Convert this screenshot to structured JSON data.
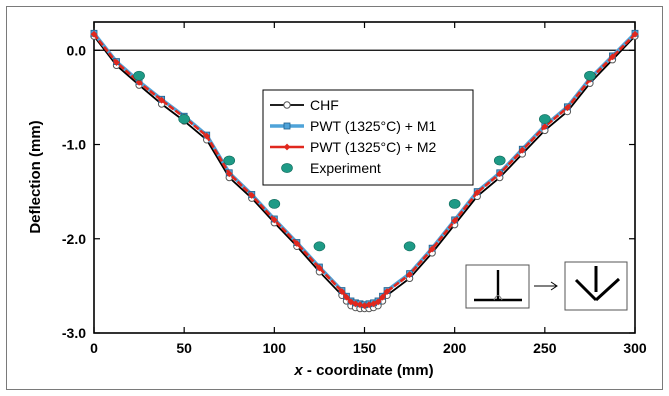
{
  "chart_data": {
    "type": "line",
    "title": "",
    "xlabel": "x - coordinate (mm)",
    "xlabel_italic_part": "x",
    "xlabel_rest": " - coordinate (mm)",
    "ylabel": "Deflection (mm)",
    "xlim": [
      0,
      300
    ],
    "ylim": [
      -3.0,
      0.3
    ],
    "xticks": [
      0,
      50,
      100,
      150,
      200,
      250,
      300
    ],
    "yticks": [
      0.0,
      -1.0,
      -2.0,
      -3.0
    ],
    "xtick_labels": [
      "0",
      "50",
      "100",
      "150",
      "200",
      "250",
      "300"
    ],
    "ytick_labels": [
      "0.0",
      "-1.0",
      "-2.0",
      "-3.0"
    ],
    "grid": false,
    "reference_line_y": 0.0,
    "legend_position": "top-center",
    "series": [
      {
        "name": "CHF",
        "color": "#000000",
        "marker": "open-circle",
        "x": [
          0,
          12.5,
          25,
          37.5,
          50,
          62.5,
          75,
          87.5,
          100,
          112.5,
          125,
          137.5,
          140,
          142.5,
          145,
          147.5,
          150,
          152.5,
          155,
          157.5,
          160,
          162.5,
          175,
          187.5,
          200,
          212.5,
          225,
          237.5,
          250,
          262.5,
          275,
          287.5,
          300
        ],
        "y": [
          0.15,
          -0.16,
          -0.37,
          -0.57,
          -0.75,
          -0.95,
          -1.35,
          -1.57,
          -1.83,
          -2.08,
          -2.35,
          -2.6,
          -2.66,
          -2.71,
          -2.73,
          -2.74,
          -2.74,
          -2.74,
          -2.73,
          -2.71,
          -2.66,
          -2.6,
          -2.42,
          -2.15,
          -1.85,
          -1.55,
          -1.35,
          -1.1,
          -0.85,
          -0.65,
          -0.35,
          -0.1,
          0.15
        ]
      },
      {
        "name": "PWT (1325°C) + M1",
        "color": "#4fa3d9",
        "marker": "square",
        "x": [
          0,
          12.5,
          25,
          37.5,
          50,
          62.5,
          75,
          87.5,
          100,
          112.5,
          125,
          137.5,
          140,
          142.5,
          145,
          147.5,
          150,
          152.5,
          155,
          157.5,
          160,
          162.5,
          175,
          187.5,
          200,
          212.5,
          225,
          237.5,
          250,
          262.5,
          275,
          287.5,
          300
        ],
        "y": [
          0.18,
          -0.12,
          -0.33,
          -0.52,
          -0.7,
          -0.9,
          -1.3,
          -1.53,
          -1.79,
          -2.04,
          -2.3,
          -2.55,
          -2.61,
          -2.66,
          -2.68,
          -2.69,
          -2.7,
          -2.69,
          -2.68,
          -2.66,
          -2.61,
          -2.55,
          -2.37,
          -2.1,
          -1.8,
          -1.5,
          -1.3,
          -1.05,
          -0.8,
          -0.6,
          -0.3,
          -0.06,
          0.18
        ]
      },
      {
        "name": "PWT (1325°C) + M2",
        "color": "#e0281e",
        "marker": "diamond",
        "x": [
          0,
          12.5,
          25,
          37.5,
          50,
          62.5,
          75,
          87.5,
          100,
          112.5,
          125,
          137.5,
          140,
          142.5,
          145,
          147.5,
          150,
          152.5,
          155,
          157.5,
          160,
          162.5,
          175,
          187.5,
          200,
          212.5,
          225,
          237.5,
          250,
          262.5,
          275,
          287.5,
          300
        ],
        "y": [
          0.17,
          -0.13,
          -0.34,
          -0.53,
          -0.71,
          -0.91,
          -1.31,
          -1.54,
          -1.8,
          -2.05,
          -2.31,
          -2.56,
          -2.62,
          -2.67,
          -2.69,
          -2.7,
          -2.71,
          -2.7,
          -2.69,
          -2.67,
          -2.62,
          -2.56,
          -2.38,
          -2.11,
          -1.81,
          -1.51,
          -1.31,
          -1.06,
          -0.81,
          -0.61,
          -0.31,
          -0.07,
          0.17
        ]
      },
      {
        "name": "Experiment",
        "color": "#1e9a86",
        "marker": "filled-circle",
        "line": false,
        "x": [
          25,
          50,
          75,
          100,
          125,
          175,
          200,
          225,
          250,
          275
        ],
        "y": [
          -0.27,
          -0.73,
          -1.17,
          -1.63,
          -2.08,
          -2.08,
          -1.63,
          -1.17,
          -0.73,
          -0.27
        ]
      }
    ]
  }
}
